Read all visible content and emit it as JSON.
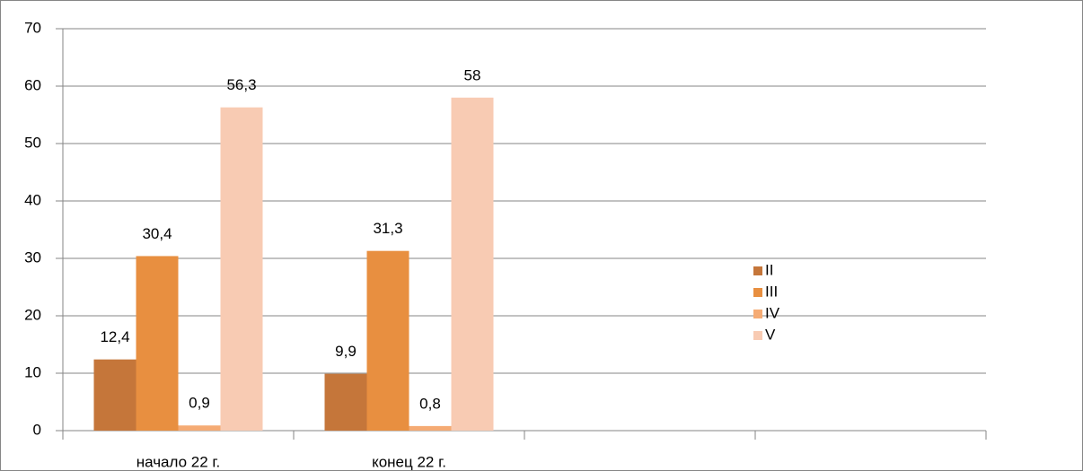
{
  "chart_data": {
    "type": "bar",
    "categories": [
      "начало 22 г.",
      "конец 22 г.",
      null,
      null
    ],
    "series": [
      {
        "name": "II",
        "color": "#c5763a",
        "values": [
          12.4,
          9.9,
          null,
          null
        ],
        "value_labels": [
          "12,4",
          "9,9",
          null,
          null
        ]
      },
      {
        "name": "III",
        "color": "#e88f40",
        "values": [
          30.4,
          31.3,
          null,
          null
        ],
        "value_labels": [
          "30,4",
          "31,3",
          null,
          null
        ]
      },
      {
        "name": "IV",
        "color": "#f5ab74",
        "values": [
          0.9,
          0.8,
          null,
          null
        ],
        "value_labels": [
          "0,9",
          "0,8",
          null,
          null
        ]
      },
      {
        "name": "V",
        "color": "#f8cbb3",
        "values": [
          56.3,
          58,
          null,
          null
        ],
        "value_labels": [
          "56,3",
          "58",
          null,
          null
        ]
      }
    ],
    "ylim": [
      0,
      70
    ],
    "yticks": [
      0,
      10,
      20,
      30,
      40,
      50,
      60,
      70
    ],
    "grid": true,
    "legend": "right"
  }
}
